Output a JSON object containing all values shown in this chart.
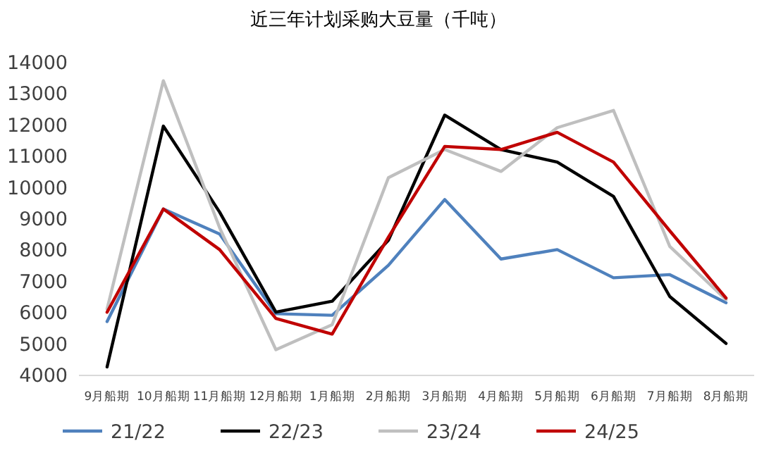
{
  "chart_data": {
    "type": "line",
    "title": "近三年计划采购大豆量（千吨）",
    "categories": [
      "9月船期",
      "10月船期",
      "11月船期",
      "12月船期",
      "1月船期",
      "2月船期",
      "3月船期",
      "4月船期",
      "5月船期",
      "6月船期",
      "7月船期",
      "8月船期"
    ],
    "series": [
      {
        "name": "21/22",
        "color": "#4f81bd",
        "values": [
          5700,
          9300,
          8500,
          5950,
          5900,
          7500,
          9600,
          7700,
          8000,
          7100,
          7200,
          6300
        ]
      },
      {
        "name": "22/23",
        "color": "#000000",
        "values": [
          4250,
          11950,
          9200,
          6000,
          6350,
          8300,
          12300,
          11200,
          10800,
          9700,
          6500,
          5000
        ]
      },
      {
        "name": "23/24",
        "color": "#bfbfbf",
        "values": [
          6100,
          13400,
          8700,
          4800,
          5600,
          10300,
          11200,
          10500,
          11900,
          12450,
          8100,
          6400
        ]
      },
      {
        "name": "24/25",
        "color": "#c00000",
        "values": [
          6000,
          9300,
          8000,
          5800,
          5300,
          8400,
          11300,
          11200,
          11750,
          10800,
          8600,
          6450
        ]
      }
    ],
    "ylim": [
      4000,
      14000
    ],
    "yticks": [
      4000,
      5000,
      6000,
      7000,
      8000,
      9000,
      10000,
      11000,
      12000,
      13000,
      14000
    ],
    "grid": false,
    "legend": "bottom",
    "marker": "none",
    "line_style": "solid"
  }
}
